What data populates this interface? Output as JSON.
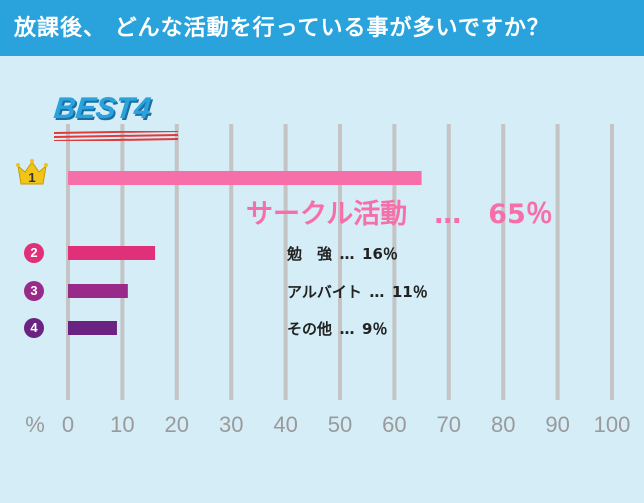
{
  "header": {
    "title": "放課後、 どんな活動を行っている事が多いですか？"
  },
  "best_label": "BEST4",
  "colors": {
    "header_bg": "#2aa3dc",
    "grid": "#c4c4c4",
    "rank1": "#f76fa8",
    "rank2": "#e0307a",
    "rank3": "#9a2a8a",
    "rank4": "#6a2283",
    "crown": "#f2c418"
  },
  "chart_data": {
    "type": "bar",
    "orientation": "horizontal",
    "categories": [
      "サークル活動",
      "勉　強",
      "アルバイト",
      "その他"
    ],
    "values": [
      65,
      16,
      11,
      9
    ],
    "value_labels": [
      "65％",
      "16％",
      "11％",
      "9％"
    ],
    "ranks": [
      "1",
      "2",
      "3",
      "4"
    ],
    "separator": "…",
    "xlabel": "%",
    "xlim": [
      0,
      100
    ],
    "xticks": [
      0,
      10,
      20,
      30,
      40,
      50,
      60,
      70,
      80,
      90,
      100
    ],
    "grid": true
  }
}
